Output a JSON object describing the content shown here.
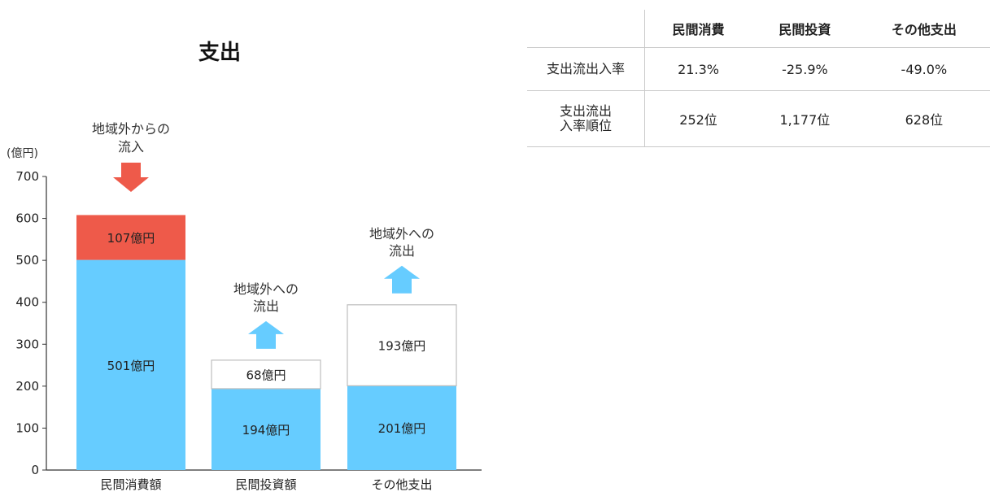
{
  "chart_data": {
    "type": "bar",
    "stacked": true,
    "title": "支出",
    "ylabel": "(億円)",
    "ylim": [
      0,
      700
    ],
    "yticks": [
      0,
      100,
      200,
      300,
      400,
      500,
      600,
      700
    ],
    "categories": [
      "民間消費額",
      "民間投資額",
      "その他支出"
    ],
    "bars": [
      {
        "category": "民間消費額",
        "base": {
          "value": 501,
          "label": "501億円"
        },
        "top": {
          "value": 107,
          "label": "107億円",
          "kind": "inflow"
        },
        "annotation": [
          "地域外からの",
          "流入"
        ],
        "arrow": "down"
      },
      {
        "category": "民間投資額",
        "base": {
          "value": 194,
          "label": "194億円"
        },
        "top": {
          "value": 68,
          "label": "68億円",
          "kind": "outflow"
        },
        "annotation": [
          "地域外への",
          "流出"
        ],
        "arrow": "up"
      },
      {
        "category": "その他支出",
        "base": {
          "value": 201,
          "label": "201億円"
        },
        "top": {
          "value": 193,
          "label": "193億円",
          "kind": "outflow"
        },
        "annotation": [
          "地域外への",
          "流出"
        ],
        "arrow": "up"
      }
    ],
    "colors": {
      "base": "#66ccff",
      "inflow": "#ee5a4a",
      "outflow": "#ffffff",
      "outflow_border": "#bdbdbd",
      "arrow_down": "#ee5a4a",
      "arrow_up": "#66ccff"
    }
  },
  "table": {
    "headers": [
      "",
      "民間消費",
      "民間投資",
      "その他支出"
    ],
    "rows": [
      {
        "label": "支出流出入率",
        "values": [
          "21.3%",
          "-25.9%",
          "-49.0%"
        ]
      },
      {
        "label": "支出流出入率順位",
        "values": [
          "252位",
          "1,177位",
          "628位"
        ]
      }
    ]
  }
}
